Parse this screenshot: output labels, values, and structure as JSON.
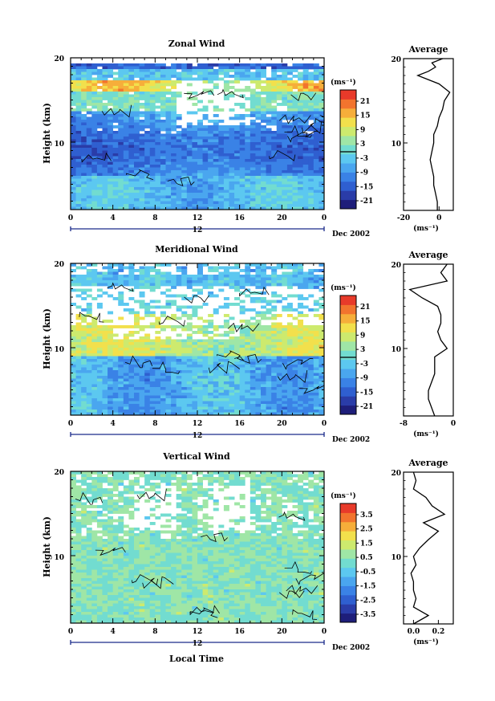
{
  "colors": {
    "white_gap": "#ffffff",
    "frame": "#000000",
    "scale": [
      "#1e1e7a",
      "#2a3ca8",
      "#2f5fd0",
      "#3a82e6",
      "#4aa6ef",
      "#5cc8f0",
      "#72dcd0",
      "#9fe6a6",
      "#cdea6e",
      "#f2e04c",
      "#f6ae3a",
      "#f2742e",
      "#e83a2a"
    ]
  },
  "shared": {
    "xticks": [
      "0",
      "4",
      "8",
      "12",
      "16",
      "20",
      "0"
    ],
    "date_mid": "12",
    "date_label": "Dec 2002",
    "ylabel": "Height (km)",
    "yticks": [
      "20",
      "10"
    ],
    "unit_label": "(ms⁻¹)",
    "profile_title": "Average",
    "xlabel_bottom": "Local Time"
  },
  "chart_data": [
    {
      "type": "heatmap",
      "title": "Zonal Wind",
      "ylabel": "Height (km)",
      "ylim": [
        2,
        20
      ],
      "xlim": [
        0,
        24
      ],
      "colorbar_label": "(ms⁻¹)",
      "colorbar_ticks": [
        "21",
        "15",
        "9",
        "3",
        "-3",
        "-9",
        "-15",
        "-21"
      ],
      "zero_line": true,
      "profile": {
        "title": "Average",
        "xticks": [
          "-20",
          "0"
        ],
        "xlim": [
          -20,
          8
        ],
        "xlabel": "(ms⁻¹)",
        "yticks": [
          "20",
          "10"
        ],
        "height_km": [
          2,
          3,
          4,
          5,
          6,
          7,
          8,
          9,
          10,
          11,
          12,
          13,
          14,
          15,
          16,
          17,
          18,
          18.5,
          19,
          19.5,
          20
        ],
        "values": [
          -1,
          -1,
          -2,
          -3,
          -3,
          -4,
          -5,
          -4,
          -3,
          -3,
          -1,
          0,
          2,
          3,
          6,
          0,
          -12,
          -6,
          -2,
          -4,
          2
        ]
      }
    },
    {
      "type": "heatmap",
      "title": "Meridional Wind",
      "ylabel": "Height (km)",
      "ylim": [
        2,
        20
      ],
      "xlim": [
        0,
        24
      ],
      "colorbar_label": "(ms⁻¹)",
      "colorbar_ticks": [
        "21",
        "15",
        "9",
        "3",
        "-3",
        "-9",
        "-15",
        "-21"
      ],
      "zero_line": true,
      "profile": {
        "title": "Average",
        "xticks": [
          "-8",
          "0"
        ],
        "xlim": [
          -8,
          0
        ],
        "xlabel": "(ms⁻¹)",
        "yticks": [
          "20",
          "10"
        ],
        "height_km": [
          2,
          3,
          4,
          5,
          6,
          7,
          8,
          9,
          10,
          11,
          12,
          13,
          14,
          15,
          16,
          17,
          18,
          19,
          20
        ],
        "values": [
          -3,
          -3.5,
          -4,
          -4,
          -3.5,
          -3,
          -3,
          -3,
          -1,
          -2,
          -2.5,
          -2,
          -2,
          -2.5,
          -5,
          -7,
          -1,
          -2,
          -1
        ]
      }
    },
    {
      "type": "heatmap",
      "title": "Vertical Wind",
      "ylabel": "Height (km)",
      "ylim": [
        2,
        20
      ],
      "xlim": [
        0,
        24
      ],
      "xlabel": "Local Time",
      "colorbar_label": "(ms⁻¹)",
      "colorbar_ticks": [
        "3.5",
        "2.5",
        "1.5",
        "0.5",
        "-0.5",
        "-1.5",
        "-2.5",
        "-3.5"
      ],
      "zero_line": false,
      "profile": {
        "title": "Average",
        "xticks": [
          "0.0",
          "0.2"
        ],
        "xlim": [
          -0.08,
          0.32
        ],
        "xlabel": "(ms⁻¹)",
        "yticks": [
          "20",
          "10"
        ],
        "height_km": [
          2,
          3,
          4,
          5,
          6,
          7,
          8,
          9,
          10,
          11,
          12,
          13,
          14,
          15,
          16,
          17,
          18,
          19,
          20
        ],
        "values": [
          0.0,
          0.12,
          0.0,
          0.02,
          0.0,
          0.0,
          -0.02,
          0.02,
          0.0,
          0.05,
          0.12,
          0.2,
          0.08,
          0.25,
          0.15,
          0.1,
          0.0,
          0.02,
          0.0
        ]
      }
    }
  ]
}
